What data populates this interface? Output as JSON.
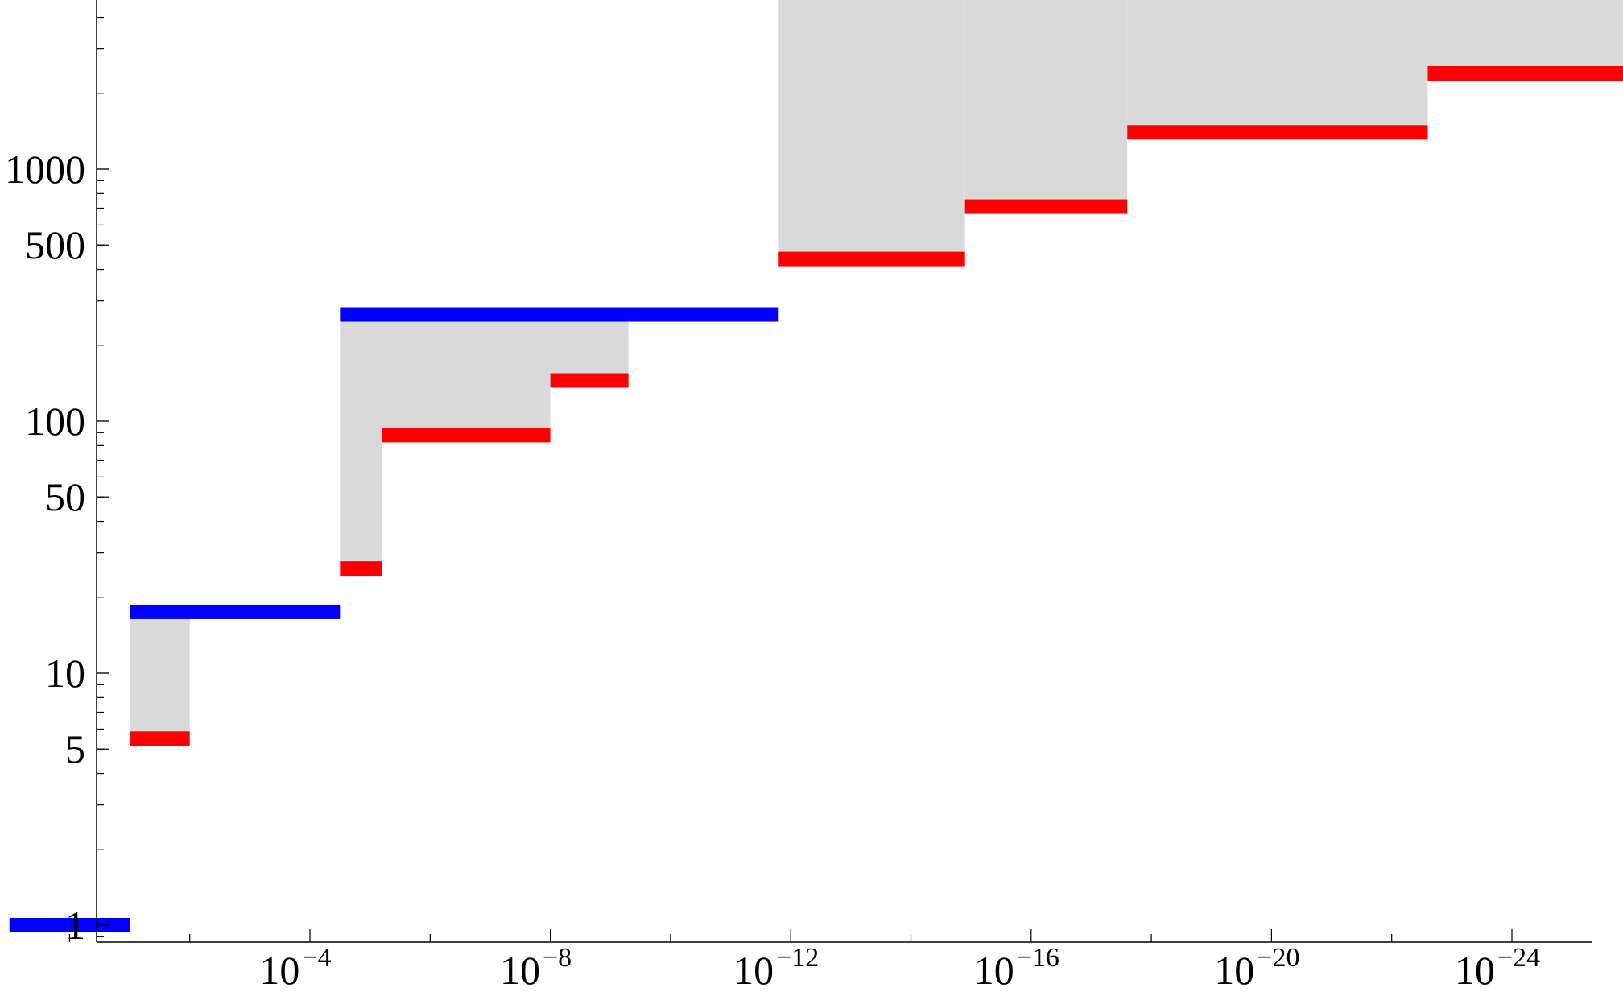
{
  "chart_data": {
    "type": "bar",
    "title": "",
    "xlabel": "",
    "ylabel": "",
    "x_axis": {
      "scale": "log",
      "direction": "decreasing",
      "unit_exponent_range": [
        1,
        -27
      ],
      "tick_labels": [
        {
          "exp": -4,
          "base": "10",
          "sup": "−4"
        },
        {
          "exp": -8,
          "base": "10",
          "sup": "−8"
        },
        {
          "exp": -12,
          "base": "10",
          "sup": "−12"
        },
        {
          "exp": -16,
          "base": "10",
          "sup": "−16"
        },
        {
          "exp": -20,
          "base": "10",
          "sup": "−20"
        },
        {
          "exp": -24,
          "base": "10",
          "sup": "−24"
        }
      ],
      "minor_tick_exponents": [
        -2,
        -6,
        -10,
        -14,
        -18,
        -22
      ]
    },
    "y_axis": {
      "scale": "log",
      "range": [
        0.89,
        11000
      ],
      "tick_labels": [
        {
          "value": 1,
          "label": "1"
        },
        {
          "value": 5,
          "label": "5"
        },
        {
          "value": 10,
          "label": "10"
        },
        {
          "value": 50,
          "label": "50"
        },
        {
          "value": 100,
          "label": "100"
        },
        {
          "value": 500,
          "label": "500"
        },
        {
          "value": 1000,
          "label": "1000"
        }
      ]
    },
    "grid": false,
    "legend": "none",
    "colors": {
      "upper": "#0000ff",
      "lower": "#ff0000",
      "gap_fill": "#d9d9d9",
      "axis": "#000000"
    },
    "series": [
      {
        "role": "upper",
        "segments": [
          {
            "x_exp_start": 1,
            "x_exp_end": -1,
            "y": 1
          },
          {
            "x_exp_start": -1,
            "x_exp_end": -4.5,
            "y": 17.5
          },
          {
            "x_exp_start": -4.5,
            "x_exp_end": -11.8,
            "y": 265
          },
          {
            "x_exp_start": -11.8,
            "x_exp_end": -26.6,
            "y": 8000
          }
        ]
      },
      {
        "role": "lower",
        "segments": [
          {
            "x_exp_start": -1,
            "x_exp_end": -2,
            "y": 5.5
          },
          {
            "x_exp_start": -4.5,
            "x_exp_end": -5.2,
            "y": 26
          },
          {
            "x_exp_start": -5.2,
            "x_exp_end": -8,
            "y": 88
          },
          {
            "x_exp_start": -8,
            "x_exp_end": -9.3,
            "y": 145
          },
          {
            "x_exp_start": -11.8,
            "x_exp_end": -14.9,
            "y": 440
          },
          {
            "x_exp_start": -14.9,
            "x_exp_end": -17.6,
            "y": 710
          },
          {
            "x_exp_start": -17.6,
            "x_exp_end": -22.6,
            "y": 1400
          },
          {
            "x_exp_start": -22.6,
            "x_exp_end": -26.6,
            "y": 2400
          }
        ]
      }
    ]
  }
}
